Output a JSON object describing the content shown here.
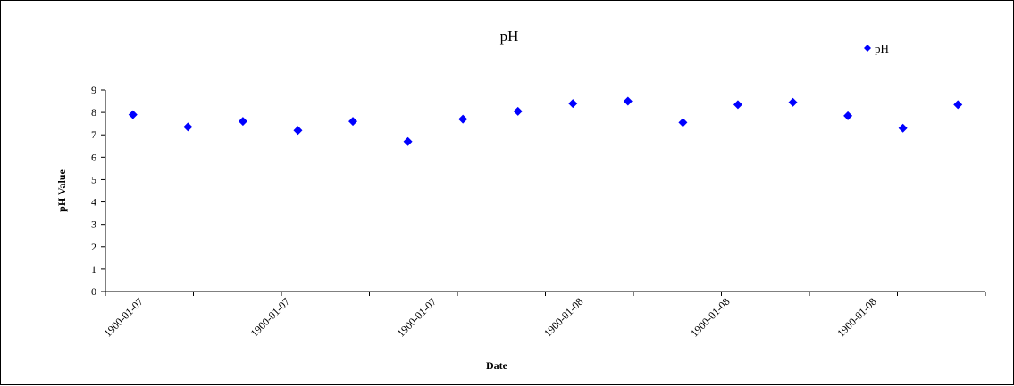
{
  "chart_data": {
    "type": "scatter",
    "title": "pH",
    "xlabel": "Date",
    "ylabel": "pH Value",
    "ylim": [
      0,
      9
    ],
    "yticks": [
      0,
      1,
      2,
      3,
      4,
      5,
      6,
      7,
      8,
      9
    ],
    "xtick_labels": [
      "1900-01-07",
      "1900-01-07",
      "1900-01-07",
      "1900-01-08",
      "1900-01-08",
      "1900-01-08"
    ],
    "grid": false,
    "legend_position": "top-right",
    "marker": "diamond",
    "series": [
      {
        "name": "pH",
        "color": "#0000ff",
        "values": [
          7.9,
          7.35,
          7.6,
          7.2,
          7.6,
          6.7,
          7.7,
          8.05,
          8.4,
          8.5,
          7.55,
          8.35,
          8.45,
          7.85,
          7.3,
          8.35
        ]
      }
    ]
  }
}
